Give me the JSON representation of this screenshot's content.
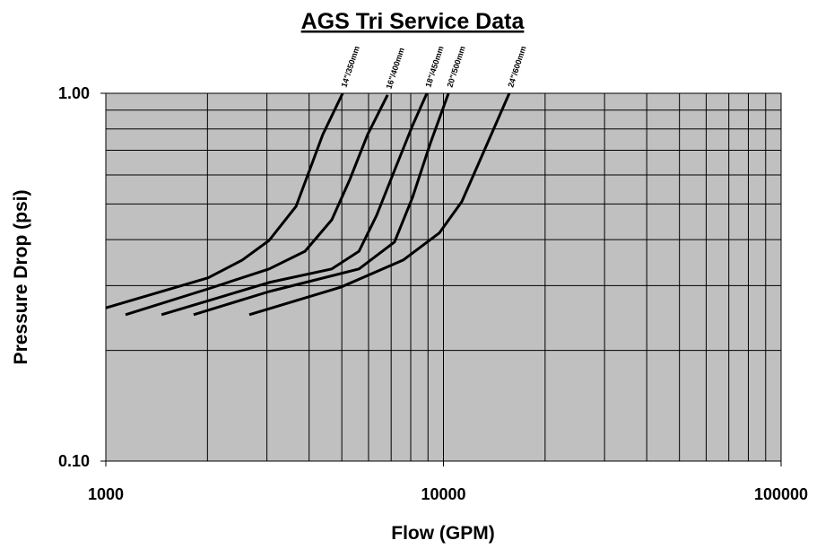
{
  "chart_data": {
    "type": "line",
    "title": "AGS Tri Service Data",
    "x_label": "Flow (GPM)",
    "y_label": "Pressure Drop (psi)",
    "log_x": true,
    "log_y": true,
    "grid": true,
    "xlim": [
      1000,
      100000
    ],
    "ylim": [
      0.1,
      1
    ],
    "xticks": [
      1000,
      10000,
      100000
    ],
    "yticks": [
      {
        "value": 0.1,
        "label": "0.10"
      },
      {
        "value": 1,
        "label": "1.00"
      }
    ],
    "xgrid": [
      2000,
      3000,
      4000,
      5000,
      6000,
      7000,
      8000,
      9000,
      10000,
      20000,
      30000,
      40000,
      50000,
      60000,
      70000,
      80000,
      90000
    ],
    "ygrid": [
      0.2,
      0.3,
      0.4,
      0.5,
      0.6,
      0.7,
      0.8,
      0.9
    ],
    "plot_color": "#c0c0c0",
    "series": [
      {
        "name": "14\"/350mm",
        "color": "#000000",
        "x": [
          1000,
          2009,
          2535,
          3045,
          3660,
          4010,
          4390,
          5030
        ],
        "values": [
          0.261,
          0.315,
          0.352,
          0.398,
          0.493,
          0.617,
          0.772,
          1.0
        ]
      },
      {
        "name": "16\"/400mm",
        "color": "#000000",
        "x": [
          1144,
          2009,
          3045,
          3890,
          4670,
          5280,
          5960,
          6830
        ],
        "values": [
          0.25,
          0.294,
          0.333,
          0.372,
          0.453,
          0.583,
          0.772,
          0.99
        ]
      },
      {
        "name": "18\"/450mm",
        "color": "#000000",
        "x": [
          1462,
          3045,
          4670,
          5620,
          6340,
          7160,
          8100,
          8930
        ],
        "values": [
          0.25,
          0.306,
          0.333,
          0.372,
          0.466,
          0.617,
          0.817,
          1.0
        ]
      },
      {
        "name": "20\"/500mm",
        "color": "#000000",
        "x": [
          1820,
          3045,
          5620,
          7160,
          8100,
          9140,
          10350
        ],
        "values": [
          0.25,
          0.289,
          0.333,
          0.394,
          0.521,
          0.73,
          1.0
        ]
      },
      {
        "name": "24\"/600mm",
        "color": "#000000",
        "x": [
          2660,
          4960,
          7600,
          9720,
          11330,
          12790,
          15670
        ],
        "values": [
          0.25,
          0.297,
          0.352,
          0.417,
          0.507,
          0.653,
          1.0
        ]
      }
    ]
  }
}
